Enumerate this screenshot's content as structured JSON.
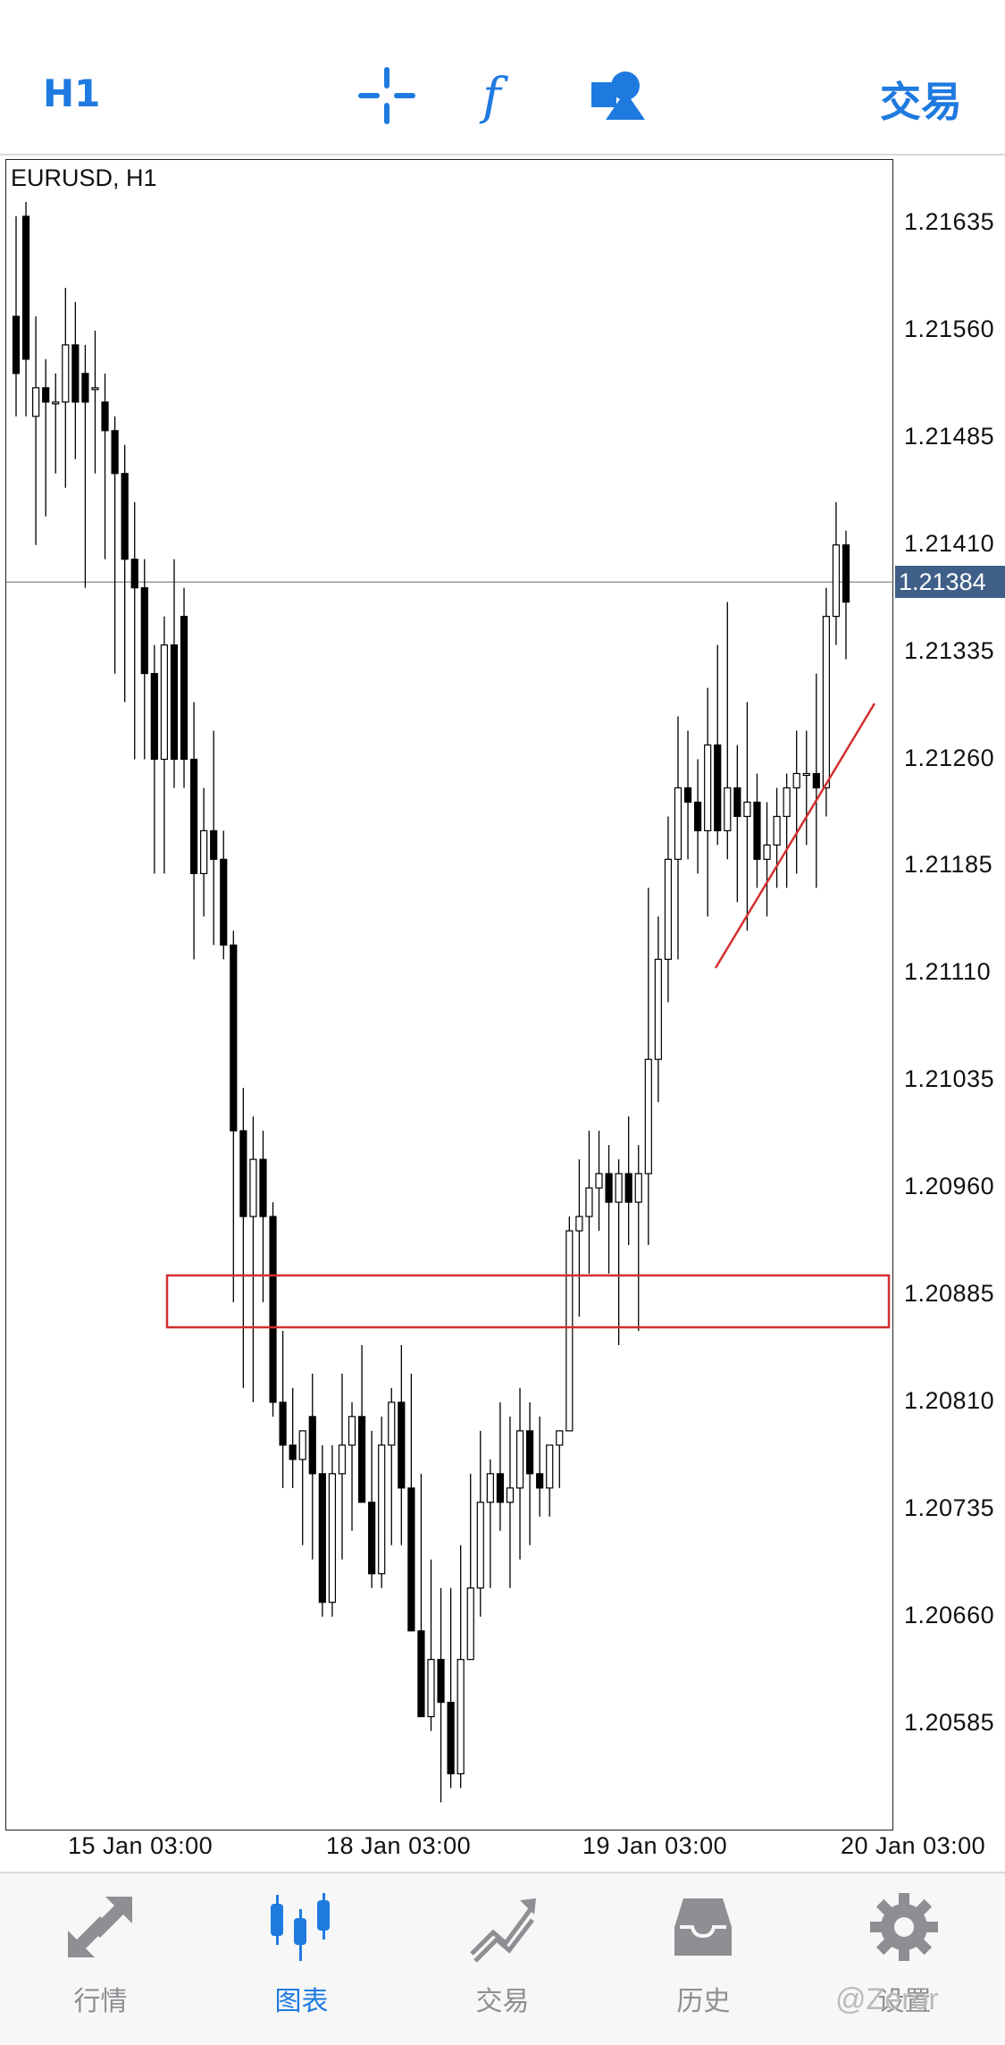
{
  "toolbar": {
    "timeframe": "H1",
    "trade": "交易",
    "icons": [
      "crosshair-icon",
      "function-icon",
      "objects-icon"
    ]
  },
  "chart": {
    "symbol": "EURUSD, H1",
    "current_price": "1.21384",
    "y_ticks": [
      "1.21635",
      "1.21560",
      "1.21485",
      "1.21410",
      "1.21335",
      "1.21260",
      "1.21185",
      "1.21110",
      "1.21035",
      "1.20960",
      "1.20885",
      "1.20810",
      "1.20735",
      "1.20660",
      "1.20585"
    ],
    "x_ticks": [
      "15 Jan 03:00",
      "18 Jan 03:00",
      "19 Jan 03:00",
      "20 Jan 03:00"
    ],
    "colors": {
      "bull": "#ffffff",
      "bear": "#000000",
      "annotation": "#d32f2f",
      "badge": "#3f5f88"
    }
  },
  "tabs": [
    {
      "label": "行情",
      "icon": "quotes-icon",
      "active": false
    },
    {
      "label": "图表",
      "icon": "chart-icon",
      "active": true
    },
    {
      "label": "交易",
      "icon": "trade-icon",
      "active": false
    },
    {
      "label": "历史",
      "icon": "history-icon",
      "active": false
    },
    {
      "label": "设置",
      "icon": "settings-icon",
      "active": false
    }
  ],
  "watermark": "@Zeror",
  "chart_data": {
    "type": "candlestick",
    "ylim": [
      1.2054,
      1.2168
    ],
    "candles": [
      [
        1.2157,
        1.2164,
        1.215,
        1.2153
      ],
      [
        1.2164,
        1.2165,
        1.215,
        1.2154
      ],
      [
        1.215,
        1.2157,
        1.2141,
        1.2152
      ],
      [
        1.2152,
        1.2154,
        1.2143,
        1.2151
      ],
      [
        1.2151,
        1.2153,
        1.2146,
        1.2151
      ],
      [
        1.2151,
        1.2159,
        1.2145,
        1.2155
      ],
      [
        1.2155,
        1.2158,
        1.2147,
        1.2151
      ],
      [
        1.2153,
        1.2155,
        1.2138,
        1.2151
      ],
      [
        1.2152,
        1.2156,
        1.2146,
        1.2152
      ],
      [
        1.2151,
        1.2153,
        1.214,
        1.2149
      ],
      [
        1.2149,
        1.215,
        1.2132,
        1.2146
      ],
      [
        1.2146,
        1.2148,
        1.213,
        1.214
      ],
      [
        1.214,
        1.2144,
        1.2126,
        1.2138
      ],
      [
        1.2138,
        1.214,
        1.2126,
        1.2132
      ],
      [
        1.2132,
        1.2134,
        1.2118,
        1.2126
      ],
      [
        1.2126,
        1.2136,
        1.2118,
        1.2134
      ],
      [
        1.2134,
        1.214,
        1.2124,
        1.2126
      ],
      [
        1.2136,
        1.2138,
        1.2124,
        1.2126
      ],
      [
        1.2126,
        1.213,
        1.2112,
        1.2118
      ],
      [
        1.2118,
        1.2124,
        1.2115,
        1.2121
      ],
      [
        1.2121,
        1.2128,
        1.2113,
        1.2119
      ],
      [
        1.2119,
        1.2121,
        1.2112,
        1.2113
      ],
      [
        1.2113,
        1.2114,
        1.2088,
        1.21
      ],
      [
        1.21,
        1.2103,
        1.2082,
        1.2094
      ],
      [
        1.2094,
        1.2101,
        1.2081,
        1.2098
      ],
      [
        1.2098,
        1.21,
        1.2088,
        1.2094
      ],
      [
        1.2094,
        1.2095,
        1.208,
        1.2081
      ],
      [
        1.2081,
        1.2086,
        1.2075,
        1.2078
      ],
      [
        1.2078,
        1.2082,
        1.2075,
        1.2077
      ],
      [
        1.2077,
        1.2079,
        1.2071,
        1.2079
      ],
      [
        1.208,
        1.2083,
        1.207,
        1.2076
      ],
      [
        1.2076,
        1.2078,
        1.2066,
        1.2067
      ],
      [
        1.2067,
        1.2078,
        1.2066,
        1.2076
      ],
      [
        1.2076,
        1.2083,
        1.207,
        1.2078
      ],
      [
        1.2078,
        1.2081,
        1.2072,
        1.208
      ],
      [
        1.208,
        1.2085,
        1.2074,
        1.2074
      ],
      [
        1.2074,
        1.2079,
        1.2068,
        1.2069
      ],
      [
        1.2069,
        1.208,
        1.2068,
        1.2078
      ],
      [
        1.2078,
        1.2082,
        1.2071,
        1.2081
      ],
      [
        1.2081,
        1.2085,
        1.2071,
        1.2075
      ],
      [
        1.2075,
        1.2083,
        1.2066,
        1.2065
      ],
      [
        1.2065,
        1.2076,
        1.206,
        1.2059
      ],
      [
        1.2059,
        1.207,
        1.2058,
        1.2063
      ],
      [
        1.2063,
        1.2068,
        1.2053,
        1.206
      ],
      [
        1.206,
        1.2068,
        1.2054,
        1.2055
      ],
      [
        1.2055,
        1.2071,
        1.2054,
        1.2063
      ],
      [
        1.2063,
        1.2076,
        1.2064,
        1.2068
      ],
      [
        1.2068,
        1.2079,
        1.2066,
        1.2074
      ],
      [
        1.2074,
        1.2077,
        1.2068,
        1.2076
      ],
      [
        1.2076,
        1.2081,
        1.2072,
        1.2074
      ],
      [
        1.2074,
        1.208,
        1.2068,
        1.2075
      ],
      [
        1.2075,
        1.2082,
        1.207,
        1.2079
      ],
      [
        1.2079,
        1.2081,
        1.2071,
        1.2076
      ],
      [
        1.2076,
        1.208,
        1.2073,
        1.2075
      ],
      [
        1.2075,
        1.2078,
        1.2073,
        1.2078
      ],
      [
        1.2078,
        1.2079,
        1.2075,
        1.2079
      ],
      [
        1.2079,
        1.2094,
        1.2079,
        1.2093
      ],
      [
        1.2093,
        1.2098,
        1.2087,
        1.2094
      ],
      [
        1.2094,
        1.21,
        1.209,
        1.2096
      ],
      [
        1.2096,
        1.21,
        1.2093,
        1.2097
      ],
      [
        1.2097,
        1.2099,
        1.209,
        1.2095
      ],
      [
        1.2095,
        1.2098,
        1.2085,
        1.2097
      ],
      [
        1.2097,
        1.2101,
        1.2092,
        1.2095
      ],
      [
        1.2095,
        1.2099,
        1.2086,
        1.2097
      ],
      [
        1.2097,
        1.2117,
        1.2092,
        1.2105
      ],
      [
        1.2105,
        1.2115,
        1.2102,
        1.2112
      ],
      [
        1.2112,
        1.2122,
        1.2109,
        1.2119
      ],
      [
        1.2119,
        1.2129,
        1.2112,
        1.2124
      ],
      [
        1.2124,
        1.2128,
        1.2119,
        1.2123
      ],
      [
        1.2123,
        1.2126,
        1.2118,
        1.2121
      ],
      [
        1.2121,
        1.2131,
        1.2115,
        1.2127
      ],
      [
        1.2127,
        1.2134,
        1.212,
        1.2121
      ],
      [
        1.2121,
        1.2137,
        1.2119,
        1.2124
      ],
      [
        1.2124,
        1.2127,
        1.2116,
        1.2122
      ],
      [
        1.2122,
        1.213,
        1.2114,
        1.2123
      ],
      [
        1.2123,
        1.2125,
        1.2117,
        1.2119
      ],
      [
        1.2119,
        1.2123,
        1.2115,
        1.212
      ],
      [
        1.212,
        1.2124,
        1.2117,
        1.2122
      ],
      [
        1.2122,
        1.2125,
        1.2117,
        1.2124
      ],
      [
        1.2124,
        1.2128,
        1.2118,
        1.2125
      ],
      [
        1.2125,
        1.2128,
        1.212,
        1.2125
      ],
      [
        1.2125,
        1.2132,
        1.2117,
        1.2124
      ],
      [
        1.2124,
        1.2138,
        1.2122,
        1.2136
      ],
      [
        1.2136,
        1.2144,
        1.2134,
        1.2141
      ],
      [
        1.2141,
        1.2142,
        1.2133,
        1.2137
      ]
    ]
  }
}
